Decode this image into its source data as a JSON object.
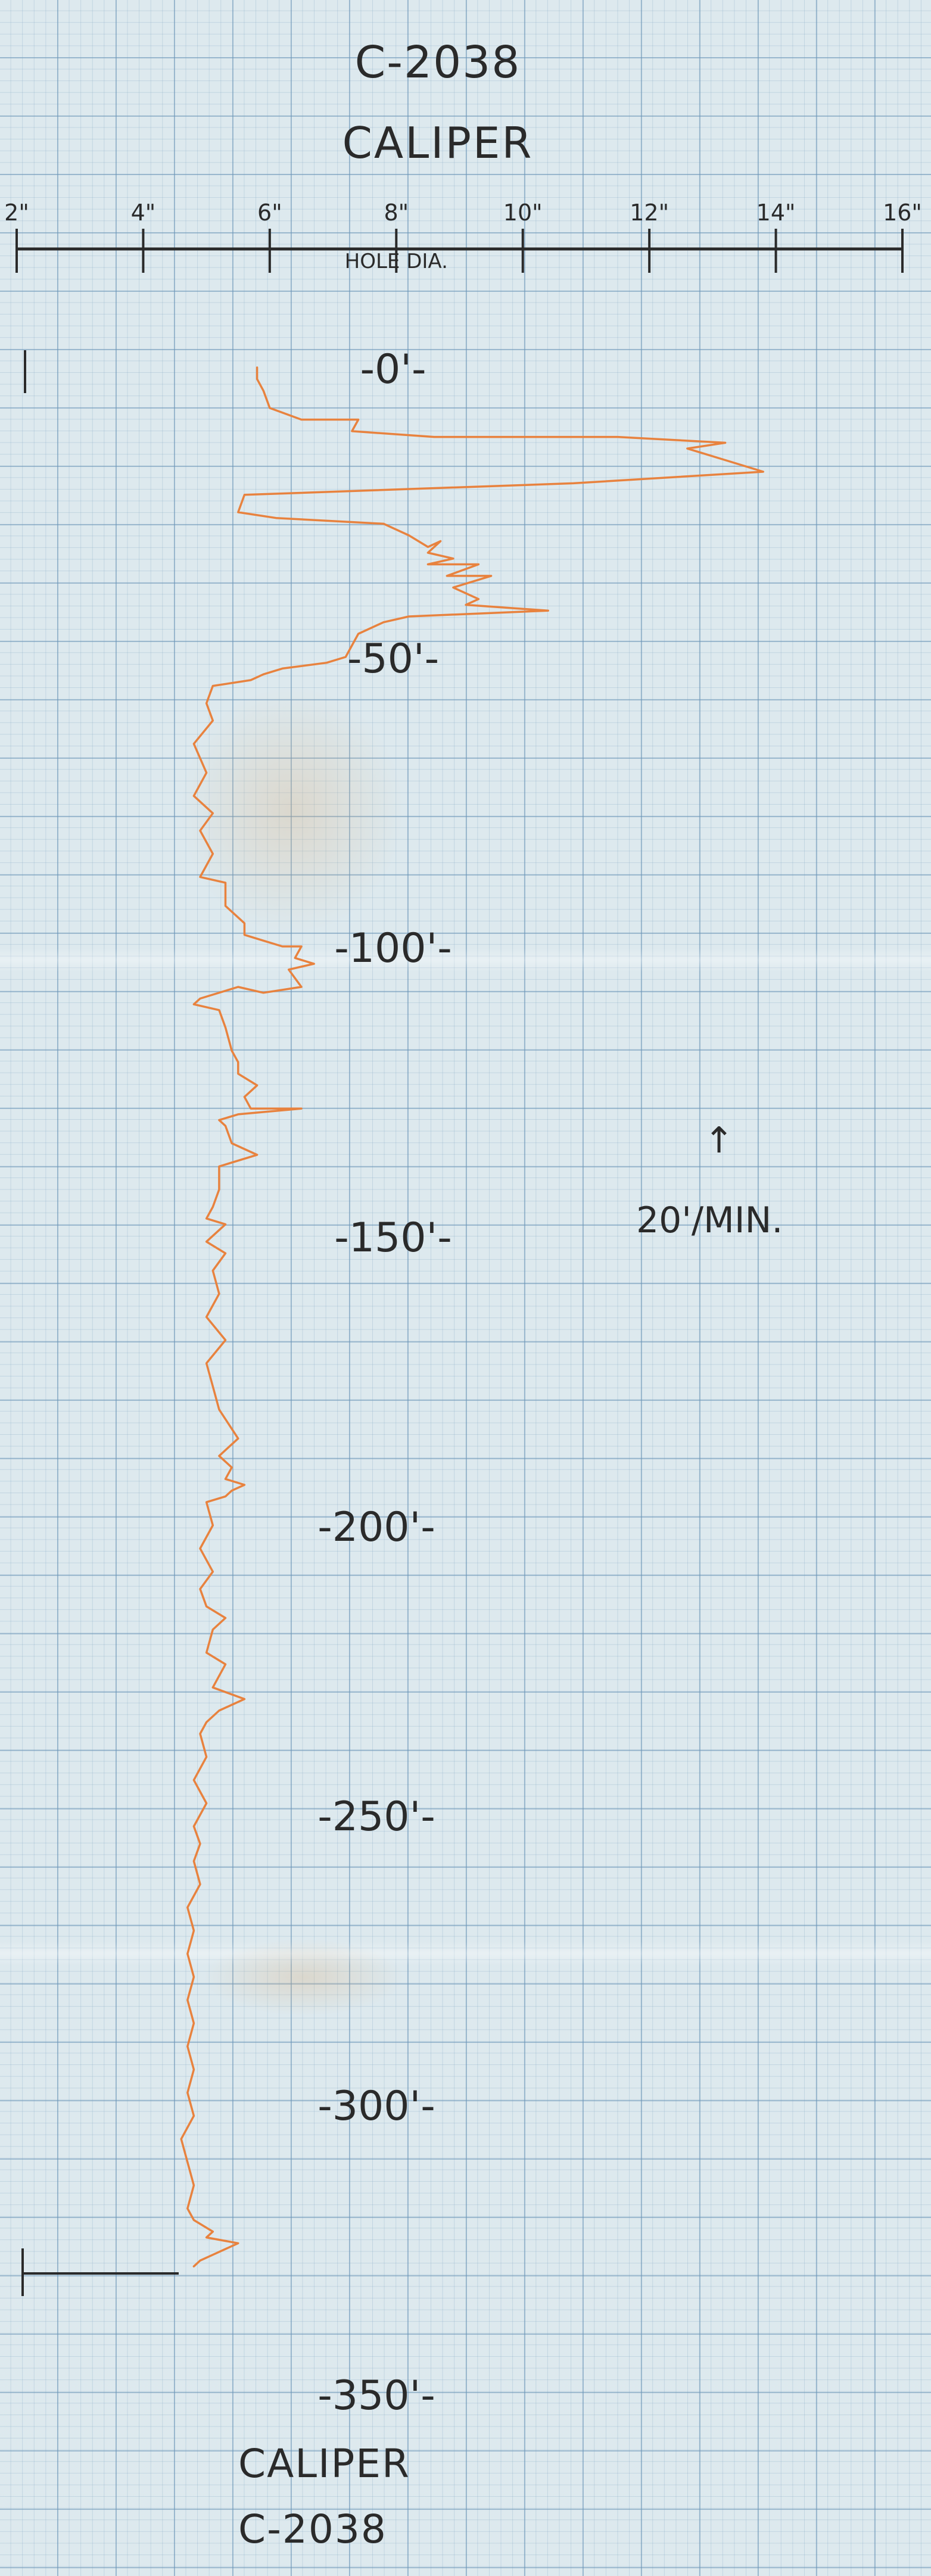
{
  "sheet": {
    "header_id": "C-2038",
    "header_log": "CALIPER",
    "footer_log": "CALIPER",
    "footer_id": "C-2038",
    "logging_speed": "20'/MIN.",
    "speed_arrow": "↑"
  },
  "colors": {
    "paper": "#dde9ee",
    "grid": "#6c96b8",
    "trace": "#e8823e",
    "ink": "#2a2a2a"
  },
  "chart_data": {
    "type": "line",
    "title": "CALIPER",
    "xlabel": "HOLE DIA.",
    "ylabel": "",
    "x_axis_position": "top",
    "xlim": [
      2,
      16
    ],
    "ylim": [
      0,
      360
    ],
    "y_inverted": true,
    "x_ticks": [
      2,
      4,
      6,
      8,
      10,
      12,
      14,
      16
    ],
    "x_tick_labels": [
      "2\"",
      "4\"",
      "6\"",
      "8\"",
      "10\"",
      "12\"",
      "14\"",
      "16\""
    ],
    "depth_ticks": [
      0,
      50,
      100,
      150,
      200,
      250,
      300,
      350
    ],
    "depth_tick_labels": [
      "-0'-",
      "-50'-",
      "-100'-",
      "-150'-",
      "-200'-",
      "-250'-",
      "-300'-",
      "-350'-"
    ],
    "grid": true,
    "series": [
      {
        "x": [
          5.8,
          5.8,
          5.9,
          6.0,
          6.5,
          7.4,
          7.3,
          8.6,
          11.5,
          13.2,
          12.6,
          13.2,
          13.8,
          10.8,
          5.6,
          5.5,
          6.1,
          7.8,
          8.2,
          8.5,
          8.7,
          8.5,
          8.9,
          8.5,
          9.3,
          8.8,
          9.5,
          8.9,
          9.3,
          9.1,
          10.4,
          8.2,
          7.8,
          7.4,
          7.3,
          7.2,
          6.9,
          6.2,
          5.9,
          5.7,
          5.1,
          5.0,
          5.1,
          4.8,
          5.0,
          4.8,
          5.1,
          4.9,
          5.1,
          4.9,
          5.3,
          5.3,
          5.6,
          5.6,
          5.9,
          6.2,
          6.5,
          6.4,
          6.7,
          6.3,
          6.5,
          5.9,
          5.5,
          4.9,
          4.8,
          5.2,
          5.3,
          5.4,
          5.5,
          5.5,
          5.8,
          5.6,
          5.7,
          6.5,
          5.5,
          5.2,
          5.3,
          5.4,
          5.8,
          5.2,
          5.2,
          5.1,
          5.0,
          5.3,
          5.0,
          5.3,
          5.1,
          5.2,
          5.0,
          5.3,
          5.0,
          5.1,
          5.2,
          5.5,
          5.2,
          5.4,
          5.3,
          5.6,
          5.4,
          5.3,
          5.0,
          5.1,
          4.9,
          5.1,
          4.9,
          5.0,
          5.3,
          5.1,
          5.0,
          5.3,
          5.2,
          5.1,
          5.6,
          5.2,
          5.0,
          4.9,
          5.0,
          4.8,
          5.0,
          4.8,
          4.9,
          4.8,
          4.9,
          4.7,
          4.8,
          4.7,
          4.8,
          4.7,
          4.8,
          4.7,
          4.8,
          4.7,
          4.8,
          4.6,
          4.7,
          4.8,
          4.7,
          4.8,
          5.1,
          5.0,
          5.5,
          5.3,
          5.1,
          4.9,
          4.8
        ],
        "y": [
          0,
          2,
          4,
          7,
          9,
          9,
          11,
          12,
          12,
          13,
          14,
          16,
          18,
          20,
          22,
          25,
          26,
          27,
          29,
          31,
          30,
          32,
          33,
          34,
          34,
          36,
          36,
          38,
          40,
          41,
          42,
          43,
          44,
          46,
          48,
          50,
          51,
          52,
          53,
          54,
          55,
          58,
          61,
          65,
          70,
          74,
          77,
          80,
          84,
          88,
          89,
          93,
          96,
          98,
          99,
          100,
          100,
          102,
          103,
          104,
          107,
          108,
          107,
          109,
          110,
          111,
          114,
          118,
          120,
          122,
          124,
          126,
          128,
          128,
          129,
          130,
          131,
          134,
          136,
          138,
          142,
          145,
          147,
          148,
          151,
          153,
          156,
          160,
          164,
          168,
          172,
          176,
          180,
          185,
          188,
          190,
          192,
          193,
          194,
          195,
          196,
          200,
          204,
          208,
          211,
          214,
          216,
          218,
          222,
          224,
          226,
          228,
          230,
          232,
          234,
          236,
          240,
          244,
          248,
          252,
          255,
          258,
          262,
          266,
          270,
          274,
          278,
          282,
          286,
          290,
          294,
          298,
          302,
          306,
          310,
          314,
          318,
          320,
          322,
          323,
          324,
          325,
          326,
          327,
          328
        ]
      }
    ]
  }
}
